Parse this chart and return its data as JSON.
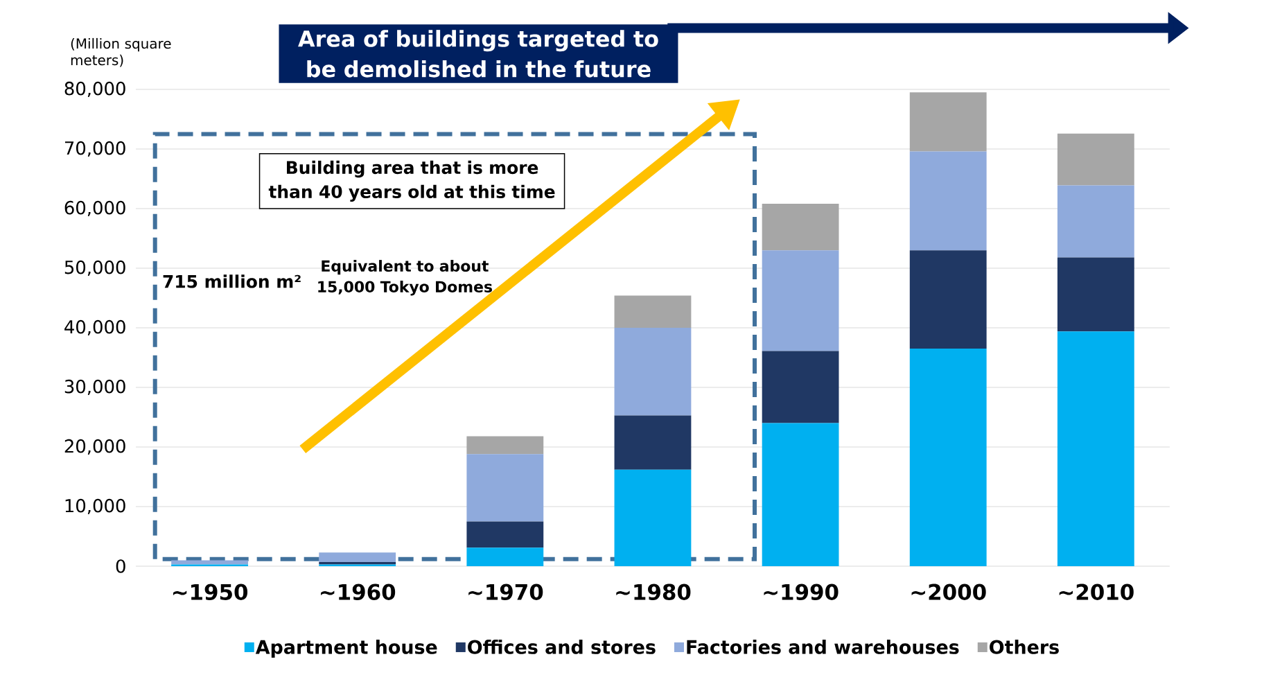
{
  "chart_data": {
    "type": "bar",
    "stacked": true,
    "categories": [
      "∼1950",
      "∼1960",
      "∼1970",
      "∼1980",
      "∼1990",
      "∼2000",
      "∼2010"
    ],
    "ylabel": "(Million square meters)",
    "series": [
      {
        "name": "Apartment house",
        "color": "#00b0f0",
        "values": [
          300,
          300,
          3100,
          16200,
          24000,
          36500,
          39400
        ]
      },
      {
        "name": "Offices and stores",
        "color": "#203864",
        "values": [
          null,
          400,
          4400,
          9100,
          12100,
          16500,
          12400
        ]
      },
      {
        "name": "Factories and warehouses",
        "color": "#8faadc",
        "values": [
          700,
          1600,
          11300,
          14700,
          16900,
          16600,
          12100
        ]
      },
      {
        "name": "Others",
        "color": "#a6a6a6",
        "values": [
          0,
          0,
          3000,
          5400,
          7800,
          9900,
          8700
        ]
      }
    ],
    "ylim": [
      0,
      80000
    ],
    "yticks": [
      0,
      {
        "value": 10000,
        "label": "10,000"
      },
      {
        "value": 20000,
        "label": "20,000"
      },
      {
        "value": 30000,
        "label": "30,000"
      },
      {
        "value": 40000,
        "label": "40,000"
      },
      {
        "value": 50000,
        "label": "50,000"
      },
      {
        "value": 60000,
        "label": "60,000"
      },
      {
        "value": 70000,
        "label": "70,000"
      },
      {
        "value": 80000,
        "label": "80,000"
      }
    ],
    "grid": "y",
    "legend": "bottom",
    "annotations": [
      "Area of buildings targeted to be demolished in the future",
      "Building area that is more than 40 years old at this time",
      "715 million m²",
      "Equivalent to about 15,000 Tokyo Domes"
    ]
  }
}
